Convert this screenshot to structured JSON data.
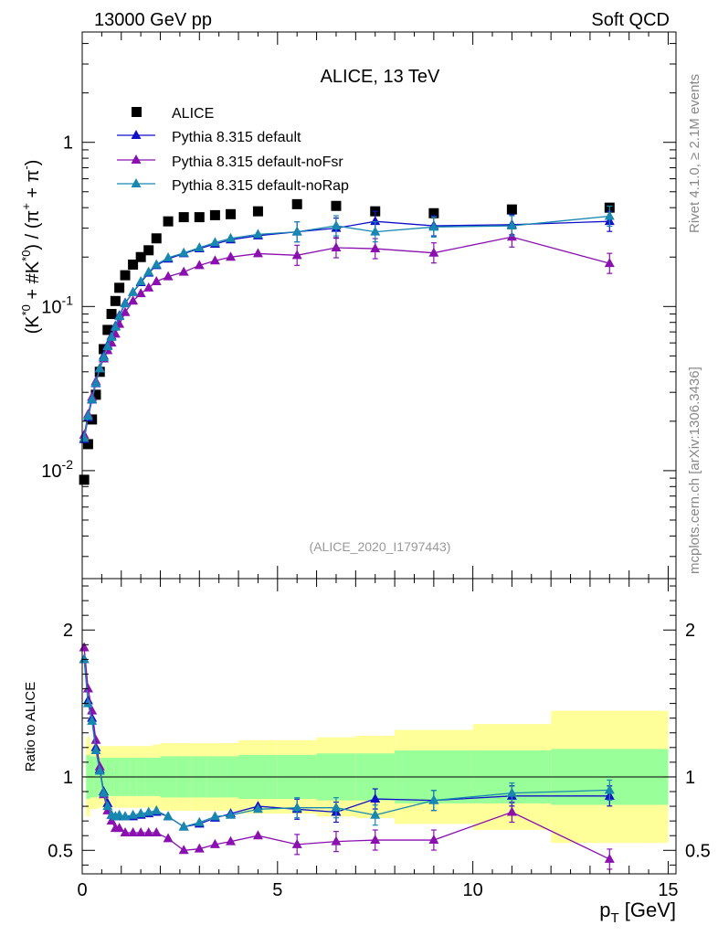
{
  "header": {
    "left": "13000 GeV pp",
    "right": "Soft QCD"
  },
  "side_labels": {
    "rivet": "Rivet 4.1.0, ≥ 2.1M events",
    "mcplots": "mcplots.cern.ch [arXiv:1306.3436]"
  },
  "colors": {
    "data": "#000000",
    "default": "#1010c8",
    "noFsr": "#8a10b0",
    "noRap": "#1888b0",
    "band_inner": "#99ff99",
    "band_outer": "#ffff99"
  },
  "chart_data": [
    {
      "type": "scatter",
      "title": "ALICE, 13 TeV",
      "reference": "(ALICE_2020_I1797443)",
      "xlabel": "p_T [GeV]",
      "ylabel": "(K*0 + #K*0) / (π+ + π-)",
      "yscale": "log",
      "xlim": [
        0,
        15.2
      ],
      "ylim": [
        0.0022,
        4.7
      ],
      "yticks": [
        0.01,
        0.1,
        1
      ],
      "ytick_labels": [
        "10-2",
        "10-1",
        "1"
      ],
      "legend": [
        "ALICE",
        "Pythia 8.315 default",
        "Pythia 8.315 default-noFsr",
        "Pythia 8.315 default-noRap"
      ],
      "data": {
        "name": "ALICE",
        "x": [
          0.05,
          0.15,
          0.25,
          0.35,
          0.45,
          0.55,
          0.65,
          0.75,
          0.85,
          0.95,
          1.1,
          1.3,
          1.5,
          1.7,
          1.9,
          2.2,
          2.6,
          3.0,
          3.4,
          3.8,
          4.5,
          5.5,
          6.5,
          7.5,
          9.0,
          11.0,
          13.5
        ],
        "y": [
          0.0088,
          0.0145,
          0.0205,
          0.029,
          0.04,
          0.055,
          0.072,
          0.09,
          0.108,
          0.13,
          0.155,
          0.18,
          0.2,
          0.22,
          0.26,
          0.33,
          0.35,
          0.35,
          0.36,
          0.365,
          0.38,
          0.42,
          0.41,
          0.38,
          0.37,
          0.39,
          0.4
        ]
      },
      "series": [
        {
          "name": "Pythia 8.315 default",
          "x": [
            0.05,
            0.15,
            0.25,
            0.35,
            0.45,
            0.55,
            0.65,
            0.75,
            0.85,
            0.95,
            1.1,
            1.3,
            1.5,
            1.7,
            1.9,
            2.2,
            2.6,
            3.0,
            3.4,
            3.8,
            4.5,
            5.5,
            6.5,
            7.5,
            9.0,
            11.0,
            13.5
          ],
          "y": [
            0.0155,
            0.021,
            0.027,
            0.034,
            0.042,
            0.05,
            0.058,
            0.066,
            0.076,
            0.088,
            0.105,
            0.122,
            0.14,
            0.16,
            0.178,
            0.195,
            0.21,
            0.225,
            0.24,
            0.255,
            0.27,
            0.285,
            0.3,
            0.33,
            0.31,
            0.315,
            0.33
          ]
        },
        {
          "name": "Pythia 8.315 default-noFsr",
          "x": [
            0.05,
            0.15,
            0.25,
            0.35,
            0.45,
            0.55,
            0.65,
            0.75,
            0.85,
            0.95,
            1.1,
            1.3,
            1.5,
            1.7,
            1.9,
            2.2,
            2.6,
            3.0,
            3.4,
            3.8,
            4.5,
            5.5,
            6.5,
            7.5,
            9.0,
            11.0,
            13.5
          ],
          "y": [
            0.0165,
            0.022,
            0.028,
            0.035,
            0.042,
            0.048,
            0.054,
            0.06,
            0.068,
            0.078,
            0.092,
            0.108,
            0.12,
            0.13,
            0.142,
            0.152,
            0.162,
            0.178,
            0.19,
            0.2,
            0.21,
            0.205,
            0.228,
            0.225,
            0.212,
            0.265,
            0.183
          ]
        },
        {
          "name": "Pythia 8.315 default-noRap",
          "x": [
            0.05,
            0.15,
            0.25,
            0.35,
            0.45,
            0.55,
            0.65,
            0.75,
            0.85,
            0.95,
            1.1,
            1.3,
            1.5,
            1.7,
            1.9,
            2.2,
            2.6,
            3.0,
            3.4,
            3.8,
            4.5,
            5.5,
            6.5,
            7.5,
            9.0,
            11.0,
            13.5
          ],
          "y": [
            0.0158,
            0.0215,
            0.0272,
            0.0342,
            0.0418,
            0.049,
            0.057,
            0.065,
            0.075,
            0.087,
            0.104,
            0.122,
            0.142,
            0.162,
            0.18,
            0.198,
            0.212,
            0.228,
            0.245,
            0.26,
            0.275,
            0.285,
            0.31,
            0.285,
            0.305,
            0.31,
            0.355
          ]
        }
      ]
    },
    {
      "type": "line",
      "ylabel": "Ratio to ALICE",
      "xlabel": "p_T [GeV]",
      "xlim": [
        0,
        15.2
      ],
      "ylim": [
        0.34,
        2.35
      ],
      "yticks": [
        0.5,
        1,
        2
      ],
      "ytick_labels": [
        "0.5",
        "1",
        "2"
      ],
      "xticks": [
        0,
        5,
        10,
        15
      ],
      "xtick_labels": [
        "0",
        "5",
        "10",
        "15"
      ],
      "bands": {
        "edges": [
          0.1,
          0.2,
          0.3,
          0.4,
          0.5,
          0.6,
          0.7,
          0.8,
          0.9,
          1.0,
          1.2,
          1.4,
          1.6,
          1.8,
          2.0,
          2.4,
          2.8,
          3.2,
          3.6,
          4.0,
          5.0,
          6.0,
          7.0,
          8.0,
          10.0,
          12.0,
          15.0
        ],
        "inner_lo": [
          0.85,
          0.86,
          0.86,
          0.87,
          0.87,
          0.87,
          0.87,
          0.87,
          0.87,
          0.87,
          0.87,
          0.87,
          0.87,
          0.87,
          0.86,
          0.86,
          0.86,
          0.86,
          0.86,
          0.85,
          0.85,
          0.84,
          0.84,
          0.82,
          0.82,
          0.81
        ],
        "inner_hi": [
          1.15,
          1.14,
          1.14,
          1.13,
          1.13,
          1.13,
          1.13,
          1.13,
          1.13,
          1.13,
          1.13,
          1.13,
          1.13,
          1.13,
          1.14,
          1.14,
          1.14,
          1.14,
          1.14,
          1.15,
          1.15,
          1.16,
          1.16,
          1.18,
          1.18,
          1.19
        ],
        "outer_lo": [
          0.73,
          0.78,
          0.78,
          0.79,
          0.79,
          0.79,
          0.79,
          0.79,
          0.79,
          0.79,
          0.79,
          0.79,
          0.79,
          0.78,
          0.77,
          0.77,
          0.77,
          0.77,
          0.77,
          0.75,
          0.75,
          0.73,
          0.72,
          0.68,
          0.64,
          0.55
        ],
        "outer_hi": [
          1.27,
          1.22,
          1.22,
          1.21,
          1.21,
          1.21,
          1.21,
          1.21,
          1.21,
          1.21,
          1.21,
          1.21,
          1.21,
          1.22,
          1.23,
          1.23,
          1.23,
          1.23,
          1.23,
          1.25,
          1.25,
          1.27,
          1.28,
          1.32,
          1.36,
          1.45
        ]
      },
      "series": [
        {
          "name": "Pythia 8.315 default",
          "x": [
            0.05,
            0.15,
            0.25,
            0.35,
            0.45,
            0.55,
            0.65,
            0.75,
            0.85,
            0.95,
            1.1,
            1.3,
            1.5,
            1.7,
            1.9,
            2.2,
            2.6,
            3.0,
            3.4,
            3.8,
            4.5,
            5.5,
            6.5,
            7.5,
            9.0,
            11.0,
            13.5
          ],
          "y": [
            1.8,
            1.52,
            1.4,
            1.2,
            1.05,
            0.9,
            0.82,
            0.74,
            0.73,
            0.73,
            0.73,
            0.73,
            0.74,
            0.75,
            0.76,
            0.73,
            0.66,
            0.68,
            0.72,
            0.75,
            0.8,
            0.78,
            0.76,
            0.85,
            0.84,
            0.87,
            0.87
          ]
        },
        {
          "name": "Pythia 8.315 default-noFsr",
          "x": [
            0.05,
            0.15,
            0.25,
            0.35,
            0.45,
            0.55,
            0.65,
            0.75,
            0.85,
            0.95,
            1.1,
            1.3,
            1.5,
            1.7,
            1.9,
            2.2,
            2.6,
            3.0,
            3.4,
            3.8,
            4.5,
            5.5,
            6.5,
            7.5,
            9.0,
            11.0,
            13.5
          ],
          "y": [
            1.88,
            1.6,
            1.45,
            1.25,
            1.07,
            0.88,
            0.77,
            0.7,
            0.65,
            0.65,
            0.62,
            0.62,
            0.62,
            0.62,
            0.62,
            0.58,
            0.5,
            0.51,
            0.54,
            0.56,
            0.6,
            0.54,
            0.56,
            0.57,
            0.57,
            0.76,
            0.44
          ]
        },
        {
          "name": "Pythia 8.315 default-noRap",
          "x": [
            0.05,
            0.15,
            0.25,
            0.35,
            0.45,
            0.55,
            0.65,
            0.75,
            0.85,
            0.95,
            1.1,
            1.3,
            1.5,
            1.7,
            1.9,
            2.2,
            2.6,
            3.0,
            3.4,
            3.8,
            4.5,
            5.5,
            6.5,
            7.5,
            9.0,
            11.0,
            13.5
          ],
          "y": [
            1.8,
            1.5,
            1.38,
            1.18,
            1.04,
            0.89,
            0.8,
            0.74,
            0.73,
            0.74,
            0.73,
            0.74,
            0.75,
            0.76,
            0.77,
            0.73,
            0.66,
            0.69,
            0.73,
            0.74,
            0.78,
            0.79,
            0.79,
            0.74,
            0.84,
            0.89,
            0.91
          ]
        }
      ]
    }
  ]
}
